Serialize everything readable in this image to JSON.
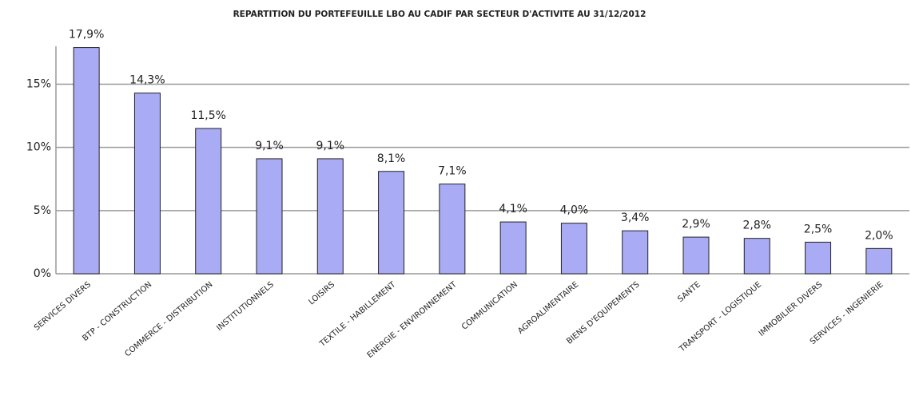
{
  "chart_data": {
    "type": "bar",
    "title": "REPARTITION DU PORTEFEUILLE LBO AU CADIF PAR SECTEUR D'ACTIVITE AU 31/12/2012",
    "categories": [
      "SERVICES DIVERS",
      "BTP - CONSTRUCTION",
      "COMMERCE - DISTRIBUTION",
      "INSTITUTIONNELS",
      "LOISIRS",
      "TEXTILE - HABILLEMENT",
      "ENERGIE - ENVIRONNEMENT",
      "COMMUNICATION",
      "AGROALIMENTAIRE",
      "BIENS D'EQUIPEMENTS",
      "SANTE",
      "TRANSPORT - LOGISTIQUE",
      "IMMOBILIER DIVERS",
      "SERVICES - INGENIERIE"
    ],
    "values": [
      17.9,
      14.3,
      11.5,
      9.1,
      9.1,
      8.1,
      7.1,
      4.1,
      4.0,
      3.4,
      2.9,
      2.8,
      2.5,
      2.0
    ],
    "value_labels": [
      "17,9%",
      "14,3%",
      "11,5%",
      "9,1%",
      "9,1%",
      "8,1%",
      "7,1%",
      "4,1%",
      "4,0%",
      "3,4%",
      "2,9%",
      "2,8%",
      "2,5%",
      "2,0%"
    ],
    "color": "#a9abf5",
    "ylim": [
      0,
      18
    ],
    "yticks": [
      {
        "value": 0,
        "label": "0%"
      },
      {
        "value": 5,
        "label": "5%"
      },
      {
        "value": 10,
        "label": "10%"
      },
      {
        "value": 15,
        "label": "15%"
      }
    ],
    "grid": true
  }
}
